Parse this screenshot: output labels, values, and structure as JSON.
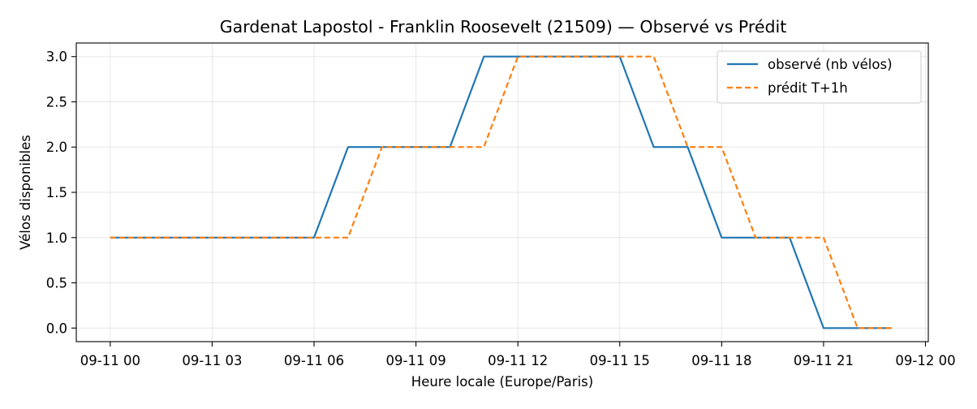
{
  "chart_data": {
    "type": "line",
    "title": "Gardenat Lapostol - Franklin Roosevelt (21509) — Observé vs Prédit",
    "xlabel": "Heure locale (Europe/Paris)",
    "ylabel": "Vélos disponibles",
    "x_ticks": [
      "09-11 00",
      "09-11 03",
      "09-11 06",
      "09-11 09",
      "09-11 12",
      "09-11 15",
      "09-11 18",
      "09-11 21",
      "09-12 00"
    ],
    "y_ticks": [
      "0.0",
      "0.5",
      "1.0",
      "1.5",
      "2.0",
      "2.5",
      "3.0"
    ],
    "xlim": [
      "09-10 23:00",
      "09-12 00:05"
    ],
    "ylim": [
      -0.15,
      3.15
    ],
    "grid": true,
    "legend_position": "top-right",
    "x": [
      "09-11 00:00",
      "09-11 01:00",
      "09-11 02:00",
      "09-11 03:00",
      "09-11 04:00",
      "09-11 05:00",
      "09-11 06:00",
      "09-11 07:00",
      "09-11 08:00",
      "09-11 09:00",
      "09-11 10:00",
      "09-11 11:00",
      "09-11 12:00",
      "09-11 13:00",
      "09-11 14:00",
      "09-11 15:00",
      "09-11 16:00",
      "09-11 17:00",
      "09-11 18:00",
      "09-11 19:00",
      "09-11 20:00",
      "09-11 21:00",
      "09-11 22:00",
      "09-11 23:00"
    ],
    "series": [
      {
        "name": "observé (nb vélos)",
        "color": "#1f77b4",
        "style": "solid",
        "values": [
          1,
          1,
          1,
          1,
          1,
          1,
          1,
          2,
          2,
          2,
          2,
          3,
          3,
          3,
          3,
          3,
          2,
          2,
          1,
          1,
          1,
          0,
          0,
          0
        ]
      },
      {
        "name": "prédit T+1h",
        "color": "#ff7f0e",
        "style": "dashed",
        "values": [
          1,
          1,
          1,
          1,
          1,
          1,
          1,
          1,
          2,
          2,
          2,
          2,
          3,
          3,
          3,
          3,
          3,
          2,
          2,
          1,
          1,
          1,
          0,
          0
        ]
      }
    ]
  }
}
